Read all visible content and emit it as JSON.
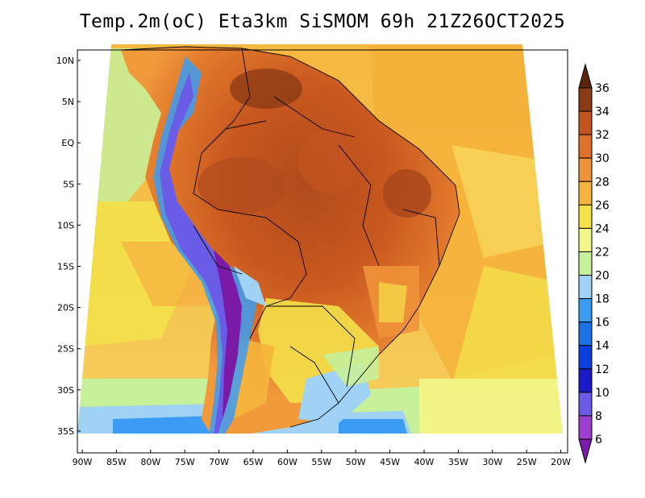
{
  "title": "Temp.2m(oC) Eta3km SiSMOM 69h 21Z26OCT2025",
  "map": {
    "lat_labels": [
      "10N",
      "5N",
      "EQ",
      "5S",
      "10S",
      "15S",
      "20S",
      "25S",
      "30S",
      "35S"
    ],
    "lon_labels": [
      "90W",
      "85W",
      "80W",
      "75W",
      "70W",
      "65W",
      "60W",
      "55W",
      "50W",
      "45W",
      "40W",
      "35W",
      "30W",
      "25W",
      "20W"
    ]
  },
  "colorbar": {
    "levels": [
      "6",
      "8",
      "10",
      "12",
      "14",
      "16",
      "18",
      "20",
      "22",
      "24",
      "26",
      "28",
      "30",
      "32",
      "34",
      "36"
    ],
    "colors": [
      "#7a1aa6",
      "#9b3fd0",
      "#6a5ce6",
      "#1a1ac8",
      "#0a3fd9",
      "#1c72e6",
      "#3c9cf3",
      "#9fd2f5",
      "#c7f09a",
      "#f2f78a",
      "#f4e04a",
      "#f5b53c",
      "#f0923a",
      "#e0702a",
      "#c25420",
      "#8a3a14",
      "#5a250c"
    ]
  }
}
